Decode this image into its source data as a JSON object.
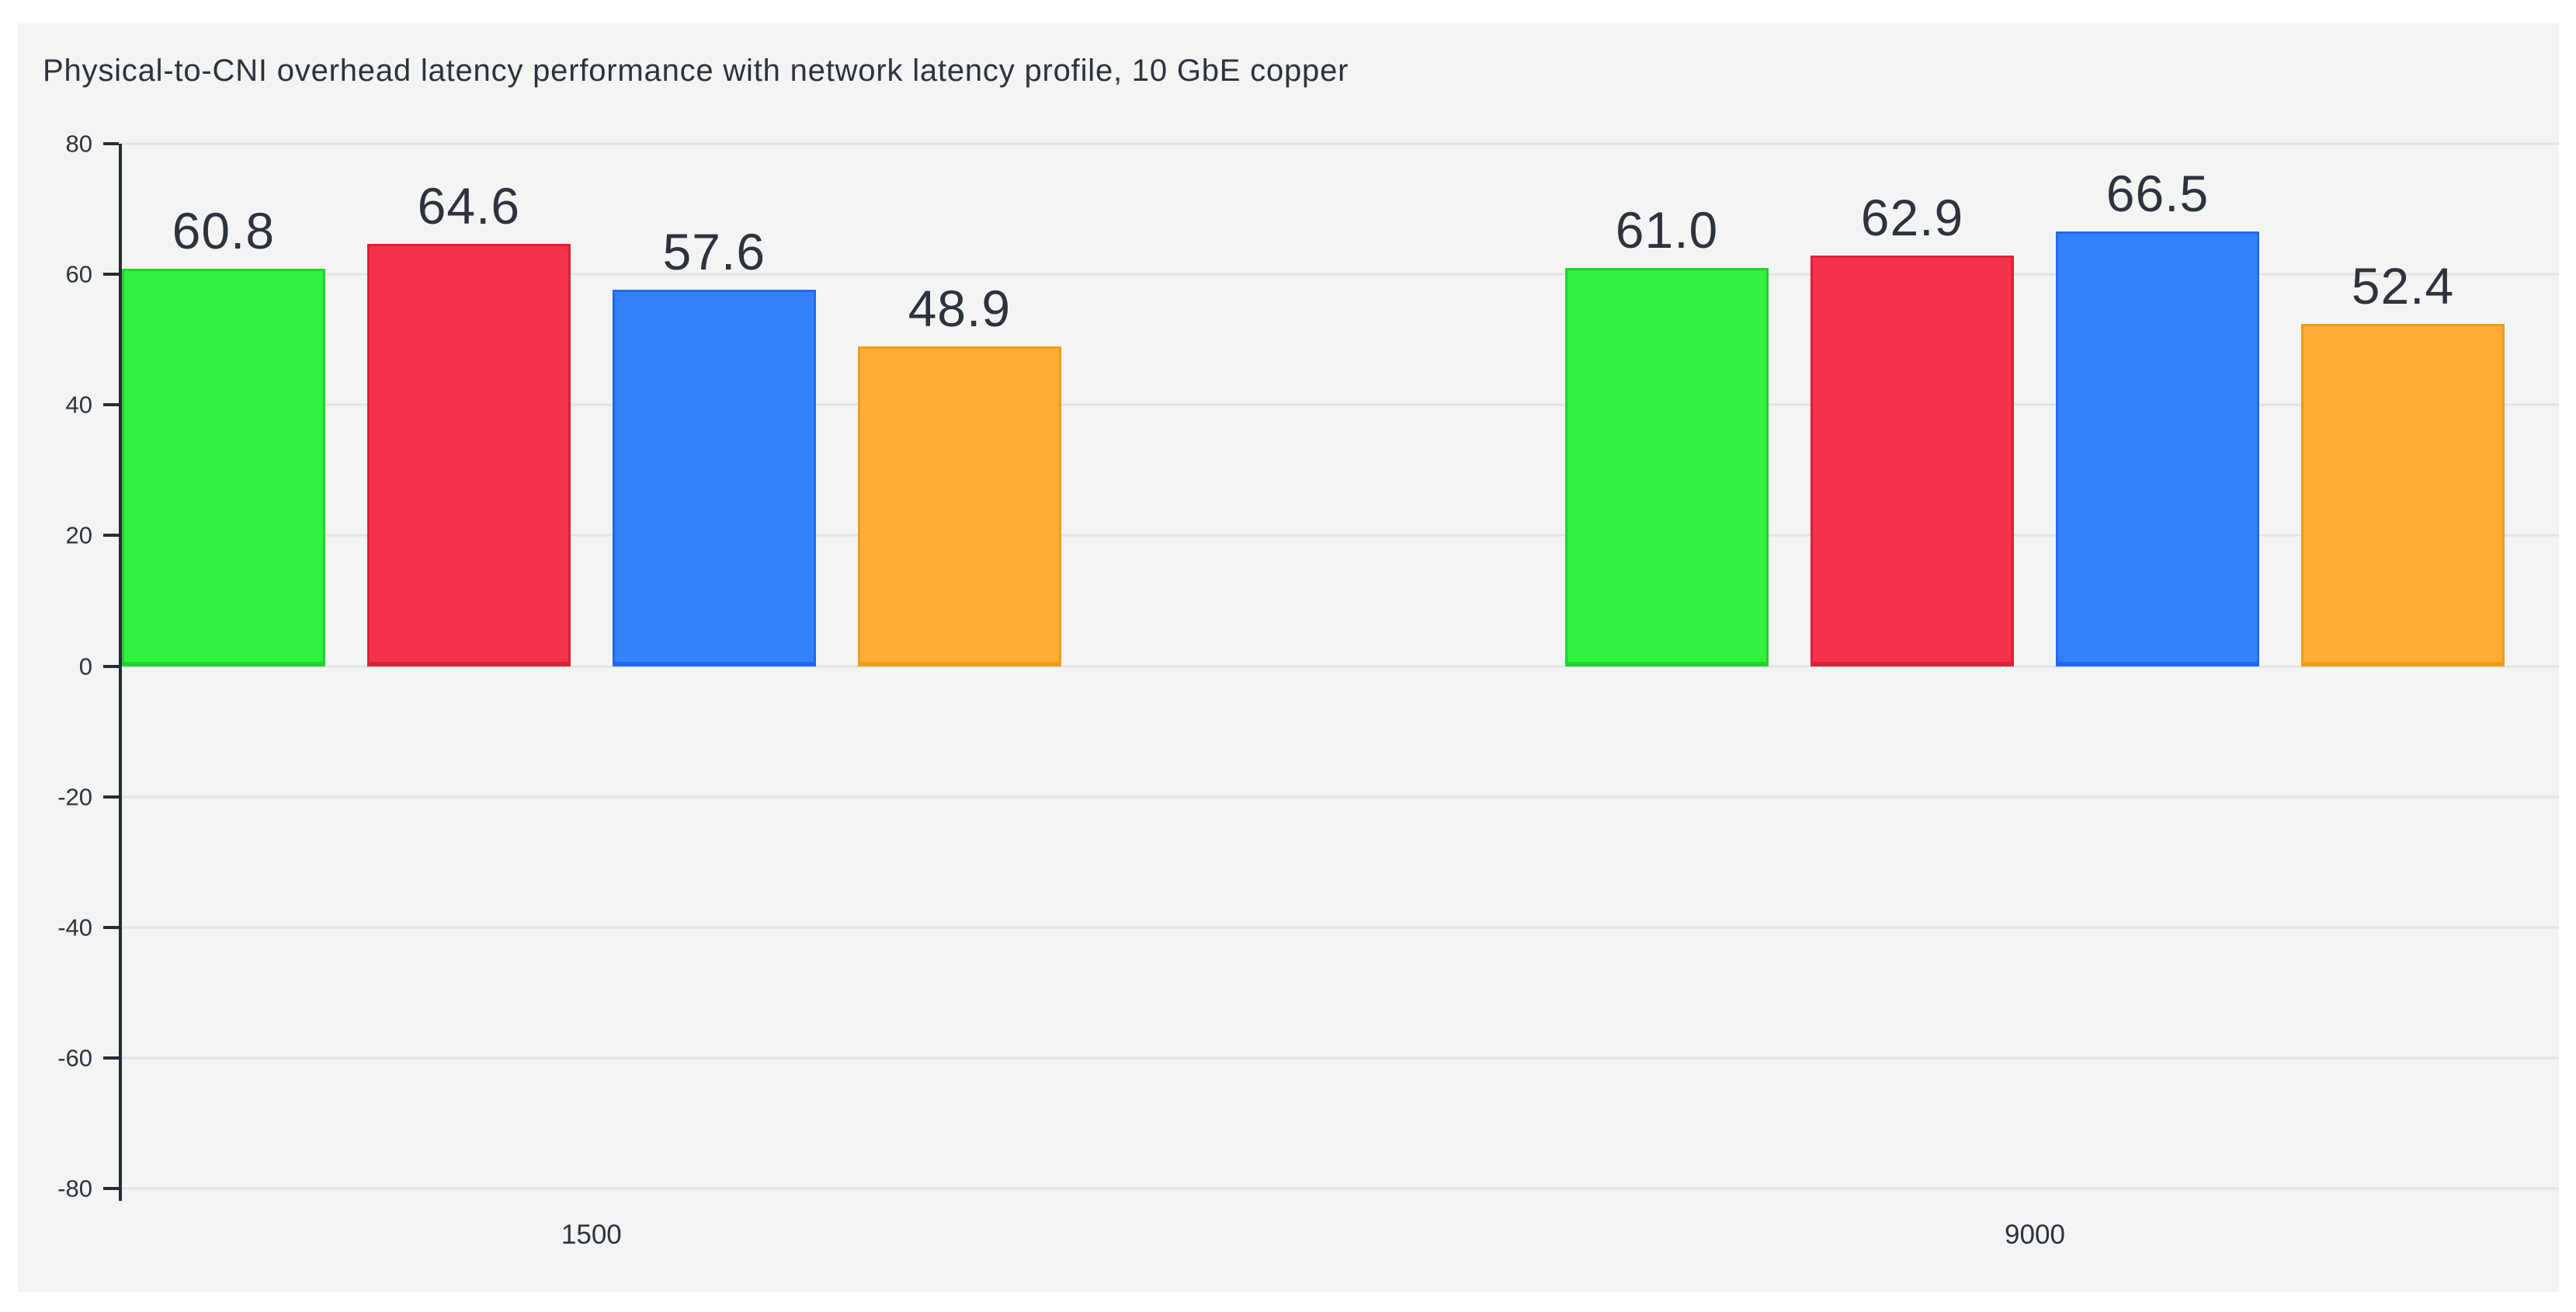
{
  "page": {
    "background": "#ffffff"
  },
  "panel": {
    "background": "#f3f4f4"
  },
  "chart_data": {
    "type": "bar",
    "title": "Physical-to-CNI overhead latency performance with network latency profile, 10 GbE copper",
    "categories": [
      "1500",
      "9000"
    ],
    "series": [
      {
        "name": "green",
        "color": "#33f23f",
        "border_color": "#1fd32e",
        "values": [
          60.8,
          61.0
        ]
      },
      {
        "name": "red",
        "color": "#f5334b",
        "border_color": "#db2038",
        "values": [
          64.6,
          62.9
        ]
      },
      {
        "name": "blue",
        "color": "#3482fb",
        "border_color": "#2069ef",
        "values": [
          57.6,
          66.5
        ]
      },
      {
        "name": "orange",
        "color": "#feae34",
        "border_color": "#ee9c18",
        "values": [
          48.9,
          52.4
        ]
      }
    ],
    "value_label_decimals": 1,
    "ylim": [
      -80,
      80
    ],
    "yticks": [
      80,
      60,
      40,
      20,
      0,
      -20,
      -40,
      -60,
      -80
    ],
    "grid": true,
    "legend_position": "none",
    "xlabel": "",
    "ylabel": "",
    "text_color": "#2d333c",
    "grid_color": "#e1e3e6",
    "axis_color": "#272c33"
  }
}
